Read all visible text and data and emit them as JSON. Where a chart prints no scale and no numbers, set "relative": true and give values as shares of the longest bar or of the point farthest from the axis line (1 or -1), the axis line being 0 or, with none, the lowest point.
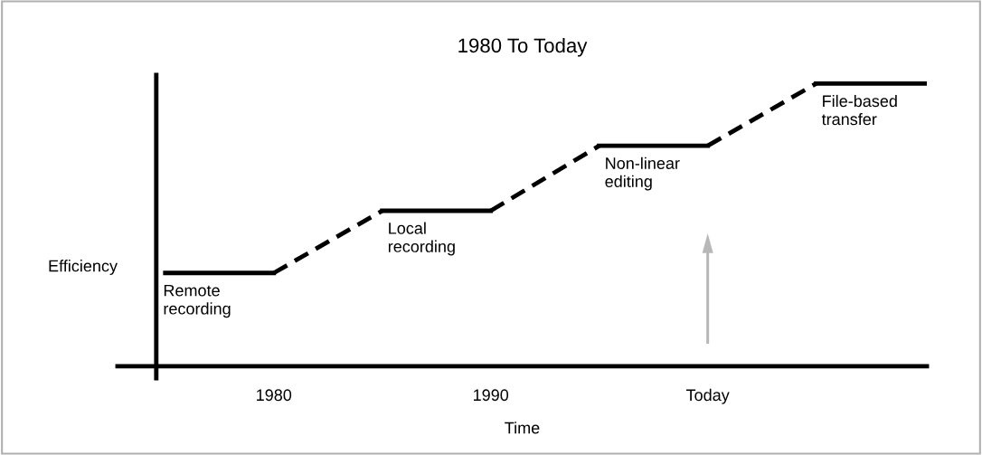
{
  "chart_data": {
    "type": "line",
    "title": "1980 To Today",
    "xlabel": "Time",
    "ylabel": "Efficiency",
    "relative": true,
    "categories": [
      null,
      "1980",
      null,
      "1990",
      null,
      "Today",
      null,
      null
    ],
    "series": [
      {
        "color": "#000000",
        "line_style": "solid",
        "values": [
          0.33,
          0.33,
          null,
          null,
          null,
          null,
          null,
          null
        ]
      },
      {
        "color": "#000000",
        "line_style": "dashed",
        "values": [
          null,
          0.33,
          0.55,
          null,
          null,
          null,
          null,
          null
        ]
      },
      {
        "color": "#000000",
        "line_style": "solid",
        "values": [
          null,
          null,
          0.55,
          0.55,
          null,
          null,
          null,
          null
        ]
      },
      {
        "color": "#000000",
        "line_style": "dashed",
        "values": [
          null,
          null,
          null,
          0.55,
          0.78,
          null,
          null,
          null
        ]
      },
      {
        "color": "#000000",
        "line_style": "solid",
        "values": [
          null,
          null,
          null,
          null,
          0.78,
          0.78,
          null,
          null
        ]
      },
      {
        "color": "#000000",
        "line_style": "dashed",
        "values": [
          null,
          null,
          null,
          null,
          null,
          0.78,
          1,
          null
        ]
      },
      {
        "color": "#000000",
        "line_style": "solid",
        "values": [
          null,
          null,
          null,
          null,
          null,
          null,
          1,
          1
        ]
      }
    ],
    "annotations": [
      {
        "text": "Remote\nrecording",
        "y": 0.33
      },
      {
        "text": "Local\nrecording",
        "y": 0.55
      },
      {
        "text": "Non-linear\nediting",
        "y": 0.78
      },
      {
        "text": "File-based\ntransfer",
        "y": 1
      }
    ],
    "marker": "none",
    "grid": false,
    "legend": false
  }
}
